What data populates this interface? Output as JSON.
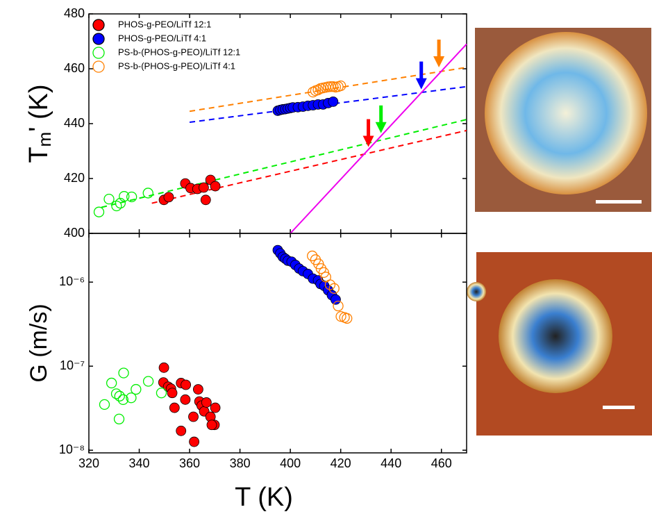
{
  "chart_data": [
    {
      "type": "scatter",
      "ylabel": {
        "text": "T",
        "subscript": "m",
        "suffix": "' (K)"
      },
      "xlim": [
        320,
        470
      ],
      "ylim": [
        400,
        480
      ],
      "xticks": [
        320,
        340,
        360,
        380,
        400,
        420,
        440,
        460
      ],
      "yticks": [
        400,
        420,
        440,
        460,
        480
      ],
      "series": [
        {
          "name": "PHOS-g-PEO/LiTf 12:1",
          "color": "#ff0000",
          "marker": "filled",
          "x": [
            349.8,
            351.7,
            358.3,
            360.4,
            363.1,
            365.6,
            366.4,
            368.3,
            370.2
          ],
          "values": [
            412.2,
            413.2,
            418.2,
            416.5,
            416.2,
            416.7,
            412.2,
            419.5,
            417.2
          ]
        },
        {
          "name": "PHOS-g-PEO/LiTf 4:1",
          "color": "#0000ff",
          "marker": "filled",
          "x": [
            395,
            396,
            397,
            398,
            399,
            400,
            401,
            403,
            405,
            407,
            409,
            411,
            413,
            415,
            417
          ],
          "values": [
            444.7,
            445,
            445.2,
            445.3,
            445.5,
            445.7,
            445.9,
            446,
            446.2,
            446.5,
            446.7,
            447,
            447,
            447.5,
            448
          ]
        },
        {
          "name": "PS-b-(PHOS-g-PEO)/LiTf 12:1",
          "color": "#00ee00",
          "marker": "open",
          "x": [
            324,
            328,
            331,
            332.5,
            334,
            337,
            343.5
          ],
          "values": [
            407.8,
            412.5,
            410,
            411,
            413.5,
            413.3,
            414.7
          ]
        },
        {
          "name": "PS-b-(PHOS-g-PEO)/LiTf 4:1",
          "color": "#ff8000",
          "marker": "open",
          "x": [
            409,
            410,
            411,
            412,
            413,
            414,
            415,
            416,
            417,
            418,
            419,
            420
          ],
          "values": [
            451.5,
            452,
            452.3,
            452.8,
            453,
            453.2,
            453.4,
            453.5,
            453.5,
            453.3,
            453.5,
            453.8
          ]
        }
      ],
      "fits": [
        {
          "color": "#ff8000",
          "dash": true,
          "x": [
            360,
            470
          ],
          "y": [
            444.5,
            460.5
          ]
        },
        {
          "color": "#0000ff",
          "dash": true,
          "x": [
            360,
            470
          ],
          "y": [
            440.5,
            453.5
          ]
        },
        {
          "color": "#00ee00",
          "dash": true,
          "x": [
            325,
            470
          ],
          "y": [
            409.5,
            441.5
          ]
        },
        {
          "color": "#ff0000",
          "dash": true,
          "x": [
            345,
            470
          ],
          "y": [
            411,
            437.5
          ]
        },
        {
          "color": "#ee00ee",
          "dash": false,
          "x": [
            400,
            470
          ],
          "y": [
            400,
            469
          ]
        }
      ],
      "arrows": [
        {
          "color": "#ff0000",
          "x": 431,
          "y": 431
        },
        {
          "color": "#00ee00",
          "x": 436,
          "y": 436
        },
        {
          "color": "#0000ff",
          "x": 452,
          "y": 452
        },
        {
          "color": "#ff8000",
          "x": 459,
          "y": 460
        }
      ]
    },
    {
      "type": "scatter",
      "log_y": true,
      "ylabel": "G (m/s)",
      "xlabel": "T (K)",
      "xlim": [
        320,
        470
      ],
      "ylim": [
        9.3e-09,
        3.8e-06
      ],
      "xticks": [
        320,
        340,
        360,
        380,
        400,
        420,
        440,
        460
      ],
      "yticks": [
        {
          "value": 1e-08,
          "label": "10⁻⁸"
        },
        {
          "value": 1e-07,
          "label": "10⁻⁷"
        },
        {
          "value": 1e-06,
          "label": "10⁻⁶"
        }
      ],
      "series": [
        {
          "color": "#ff0000",
          "marker": "filled",
          "x": [
            349.8,
            349.6,
            351.5,
            352.6,
            353.1,
            354,
            356.6,
            358.5,
            356.6,
            358.3,
            361.8,
            361.5,
            363.4,
            363.9,
            364.8,
            365.8,
            366.7,
            368.3,
            370.2,
            369.9,
            368.8
          ],
          "values": [
            9.6e-08,
            6.4e-08,
            5.7e-08,
            5.4e-08,
            4.8e-08,
            3.2e-08,
            6.3e-08,
            6e-08,
            1.7e-08,
            4e-08,
            1.26e-08,
            2.5e-08,
            5.3e-08,
            3.8e-08,
            3.4e-08,
            2.9e-08,
            3.7e-08,
            2.5e-08,
            3.2e-08,
            2e-08,
            2e-08
          ]
        },
        {
          "color": "#0000ff",
          "marker": "filled",
          "x": [
            395,
            396,
            397,
            398,
            399,
            400.5,
            402,
            403.5,
            405,
            407,
            409,
            411,
            412,
            413.5,
            415,
            416.5,
            418
          ],
          "values": [
            2.4e-06,
            2.2e-06,
            2e-06,
            1.9e-06,
            1.8e-06,
            1.75e-06,
            1.6e-06,
            1.45e-06,
            1.35e-06,
            1.25e-06,
            1.1e-06,
            1.05e-06,
            9.5e-07,
            9e-07,
            8e-07,
            7e-07,
            6.2e-07
          ]
        },
        {
          "color": "#00ee00",
          "marker": "open",
          "x": [
            326.2,
            329,
            330.9,
            332,
            332.2,
            333.6,
            333.8,
            336.8,
            338.7,
            343.6,
            348.8
          ],
          "values": [
            3.5e-08,
            6.3e-08,
            4.7e-08,
            2.35e-08,
            4.4e-08,
            4e-08,
            8.3e-08,
            4.2e-08,
            5.3e-08,
            6.6e-08,
            4.8e-08
          ]
        },
        {
          "color": "#ff8000",
          "marker": "open",
          "x": [
            408.7,
            410,
            411.2,
            412.2,
            413.3,
            414.1,
            415.8,
            417.4,
            419,
            420.1,
            421.5,
            422.5
          ],
          "values": [
            2.05e-06,
            1.85e-06,
            1.65e-06,
            1.45e-06,
            1.3e-06,
            1.15e-06,
            9.3e-07,
            8.4e-07,
            5.2e-07,
            3.9e-07,
            3.8e-07,
            3.7e-07
          ]
        }
      ]
    }
  ]
}
